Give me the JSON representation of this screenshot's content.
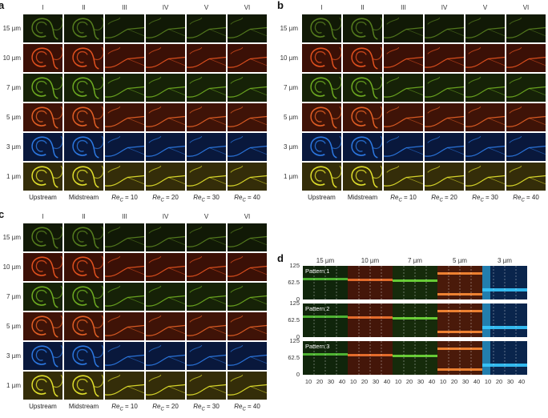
{
  "panels": {
    "a": {
      "label": "a"
    },
    "b": {
      "label": "b"
    },
    "c": {
      "label": "c"
    },
    "d": {
      "label": "d"
    }
  },
  "columns": [
    "I",
    "II",
    "III",
    "IV",
    "V",
    "VI"
  ],
  "rows": [
    "15 µm",
    "10 µm",
    "7 µm",
    "5 µm",
    "3 µm",
    "1 µm"
  ],
  "bottom_labels": [
    {
      "text": "Upstream"
    },
    {
      "text": "Midstream"
    },
    {
      "prefix": "Re",
      "sub": "C",
      "suffix": " = 10"
    },
    {
      "prefix": "Re",
      "sub": "C",
      "suffix": " = 20"
    },
    {
      "prefix": "Re",
      "sub": "C",
      "suffix": " = 30"
    },
    {
      "prefix": "Re",
      "sub": "C",
      "suffix": " = 40"
    }
  ],
  "row_colors": [
    "#3e5a16",
    "#d43a16",
    "#4f7a18",
    "#e0441a",
    "#1f56d8",
    "#b8a020"
  ],
  "panel_d": {
    "sizes": [
      "15 µm",
      "10 µm",
      "7 µm",
      "5 µm",
      "3 µm"
    ],
    "patterns": [
      "Pattern 1",
      "Pattern 2",
      "Pattern 3"
    ],
    "y_ticks": [
      "125",
      "62.5",
      "0"
    ],
    "x_ticks": [
      "10",
      "20",
      "30",
      "40"
    ],
    "strip_colors": [
      "#2f6b1e",
      "#c2401a",
      "#3e7a20",
      "#d24a1c",
      "#1d6ad8"
    ]
  }
}
